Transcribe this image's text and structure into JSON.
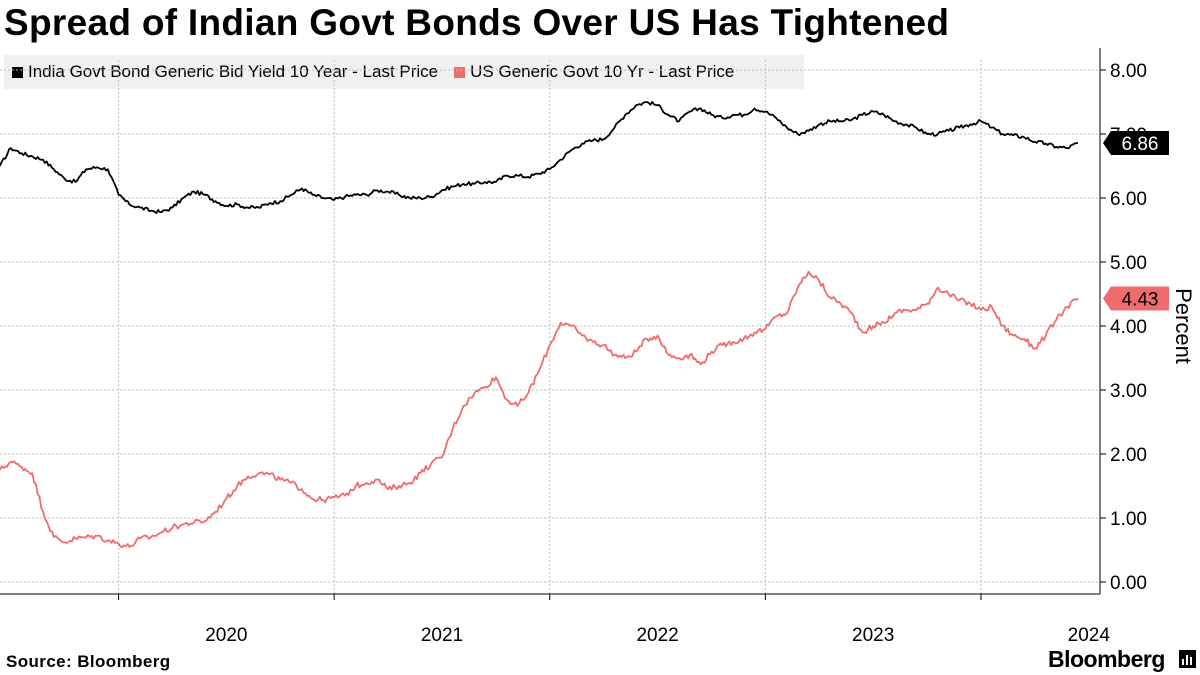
{
  "chart_data": {
    "type": "line",
    "title": "Spread of Indian Govt Bonds Over US Has Tightened",
    "ylabel": "Percent",
    "xlabel": "",
    "ylim": [
      0,
      8
    ],
    "y_ticks": [
      "0.00",
      "1.00",
      "2.00",
      "3.00",
      "4.00",
      "5.00",
      "6.00",
      "7.00",
      "8.00"
    ],
    "x_ticks": [
      "2020",
      "2021",
      "2022",
      "2023",
      "2024"
    ],
    "x_range": [
      2019.45,
      2024.45
    ],
    "grid": true,
    "legend_position": "top-left",
    "series": [
      {
        "name": "India Govt Bond Generic Bid Yield 10 Year - Last Price",
        "color": "#000000",
        "last_label": "6.86",
        "x": [
          2019.45,
          2019.5,
          2019.55,
          2019.6,
          2019.65,
          2019.7,
          2019.75,
          2019.8,
          2019.85,
          2019.9,
          2019.95,
          2020.0,
          2020.05,
          2020.1,
          2020.15,
          2020.2,
          2020.25,
          2020.3,
          2020.35,
          2020.4,
          2020.45,
          2020.5,
          2020.55,
          2020.6,
          2020.65,
          2020.7,
          2020.75,
          2020.8,
          2020.85,
          2020.9,
          2020.95,
          2021.0,
          2021.05,
          2021.1,
          2021.15,
          2021.2,
          2021.25,
          2021.3,
          2021.35,
          2021.4,
          2021.45,
          2021.5,
          2021.55,
          2021.6,
          2021.65,
          2021.7,
          2021.75,
          2021.8,
          2021.85,
          2021.9,
          2021.95,
          2022.0,
          2022.05,
          2022.1,
          2022.15,
          2022.2,
          2022.25,
          2022.3,
          2022.35,
          2022.4,
          2022.45,
          2022.5,
          2022.55,
          2022.6,
          2022.65,
          2022.7,
          2022.75,
          2022.8,
          2022.85,
          2022.9,
          2022.95,
          2023.0,
          2023.05,
          2023.1,
          2023.15,
          2023.2,
          2023.25,
          2023.3,
          2023.35,
          2023.4,
          2023.45,
          2023.5,
          2023.55,
          2023.6,
          2023.65,
          2023.7,
          2023.75,
          2023.8,
          2023.85,
          2023.9,
          2023.95,
          2024.0,
          2024.05,
          2024.1,
          2024.15,
          2024.2,
          2024.25,
          2024.3,
          2024.35,
          2024.4,
          2024.45
        ],
        "y": [
          6.5,
          6.78,
          6.7,
          6.65,
          6.6,
          6.45,
          6.3,
          6.25,
          6.45,
          6.48,
          6.45,
          6.05,
          5.9,
          5.85,
          5.8,
          5.78,
          5.85,
          6.0,
          6.1,
          6.05,
          5.95,
          5.88,
          5.9,
          5.85,
          5.85,
          5.92,
          5.95,
          6.05,
          6.15,
          6.05,
          6.0,
          5.97,
          6.02,
          6.05,
          6.05,
          6.12,
          6.1,
          6.05,
          6.0,
          6.0,
          6.02,
          6.12,
          6.18,
          6.22,
          6.22,
          6.25,
          6.25,
          6.35,
          6.35,
          6.33,
          6.38,
          6.45,
          6.6,
          6.75,
          6.85,
          6.9,
          6.92,
          7.1,
          7.3,
          7.45,
          7.5,
          7.45,
          7.3,
          7.2,
          7.35,
          7.4,
          7.3,
          7.25,
          7.3,
          7.3,
          7.4,
          7.35,
          7.25,
          7.1,
          7.0,
          7.05,
          7.15,
          7.2,
          7.2,
          7.22,
          7.3,
          7.35,
          7.3,
          7.2,
          7.15,
          7.1,
          7.0,
          7.0,
          7.05,
          7.1,
          7.15,
          7.2,
          7.1,
          7.0,
          6.98,
          6.95,
          6.88,
          6.85,
          6.8,
          6.78,
          6.86
        ]
      },
      {
        "name": "US Generic Govt 10 Yr - Last Price",
        "color": "#f06b6b",
        "last_label": "4.43",
        "x": [
          2019.45,
          2019.5,
          2019.55,
          2019.6,
          2019.65,
          2019.7,
          2019.75,
          2019.8,
          2019.85,
          2019.9,
          2019.95,
          2020.0,
          2020.05,
          2020.1,
          2020.15,
          2020.2,
          2020.25,
          2020.3,
          2020.35,
          2020.4,
          2020.45,
          2020.5,
          2020.55,
          2020.6,
          2020.65,
          2020.7,
          2020.75,
          2020.8,
          2020.85,
          2020.9,
          2020.95,
          2021.0,
          2021.05,
          2021.1,
          2021.15,
          2021.2,
          2021.25,
          2021.3,
          2021.35,
          2021.4,
          2021.45,
          2021.5,
          2021.55,
          2021.6,
          2021.65,
          2021.7,
          2021.75,
          2021.8,
          2021.85,
          2021.9,
          2021.95,
          2022.0,
          2022.05,
          2022.1,
          2022.15,
          2022.2,
          2022.25,
          2022.3,
          2022.35,
          2022.4,
          2022.45,
          2022.5,
          2022.55,
          2022.6,
          2022.65,
          2022.7,
          2022.75,
          2022.8,
          2022.85,
          2022.9,
          2022.95,
          2023.0,
          2023.05,
          2023.1,
          2023.15,
          2023.2,
          2023.25,
          2023.3,
          2023.35,
          2023.4,
          2023.45,
          2023.5,
          2023.55,
          2023.6,
          2023.65,
          2023.7,
          2023.75,
          2023.8,
          2023.85,
          2023.9,
          2023.95,
          2024.0,
          2024.05,
          2024.1,
          2024.15,
          2024.2,
          2024.25,
          2024.3,
          2024.35,
          2024.4,
          2024.45
        ],
        "y": [
          1.75,
          1.88,
          1.8,
          1.7,
          1.1,
          0.7,
          0.62,
          0.68,
          0.7,
          0.72,
          0.65,
          0.6,
          0.55,
          0.68,
          0.7,
          0.78,
          0.85,
          0.9,
          0.93,
          0.95,
          1.1,
          1.3,
          1.5,
          1.65,
          1.7,
          1.68,
          1.6,
          1.55,
          1.45,
          1.3,
          1.28,
          1.32,
          1.35,
          1.5,
          1.55,
          1.6,
          1.45,
          1.5,
          1.55,
          1.7,
          1.85,
          1.95,
          2.4,
          2.75,
          2.95,
          3.05,
          3.2,
          2.85,
          2.75,
          2.95,
          3.3,
          3.7,
          4.05,
          4.0,
          3.85,
          3.75,
          3.7,
          3.55,
          3.5,
          3.6,
          3.8,
          3.85,
          3.55,
          3.5,
          3.55,
          3.4,
          3.6,
          3.7,
          3.75,
          3.8,
          3.9,
          3.95,
          4.15,
          4.2,
          4.6,
          4.85,
          4.7,
          4.45,
          4.35,
          4.2,
          3.9,
          4.0,
          4.05,
          4.2,
          4.25,
          4.25,
          4.35,
          4.6,
          4.5,
          4.4,
          4.35,
          4.25,
          4.3,
          4.0,
          3.85,
          3.8,
          3.65,
          3.85,
          4.1,
          4.3,
          4.43
        ]
      }
    ]
  },
  "legend": {
    "india_label": "India Govt Bond Generic Bid Yield 10 Year - Last Price",
    "us_label": "US Generic Govt 10 Yr - Last Price"
  },
  "footer": {
    "source": "Source: Bloomberg",
    "brand": "Bloomberg"
  }
}
